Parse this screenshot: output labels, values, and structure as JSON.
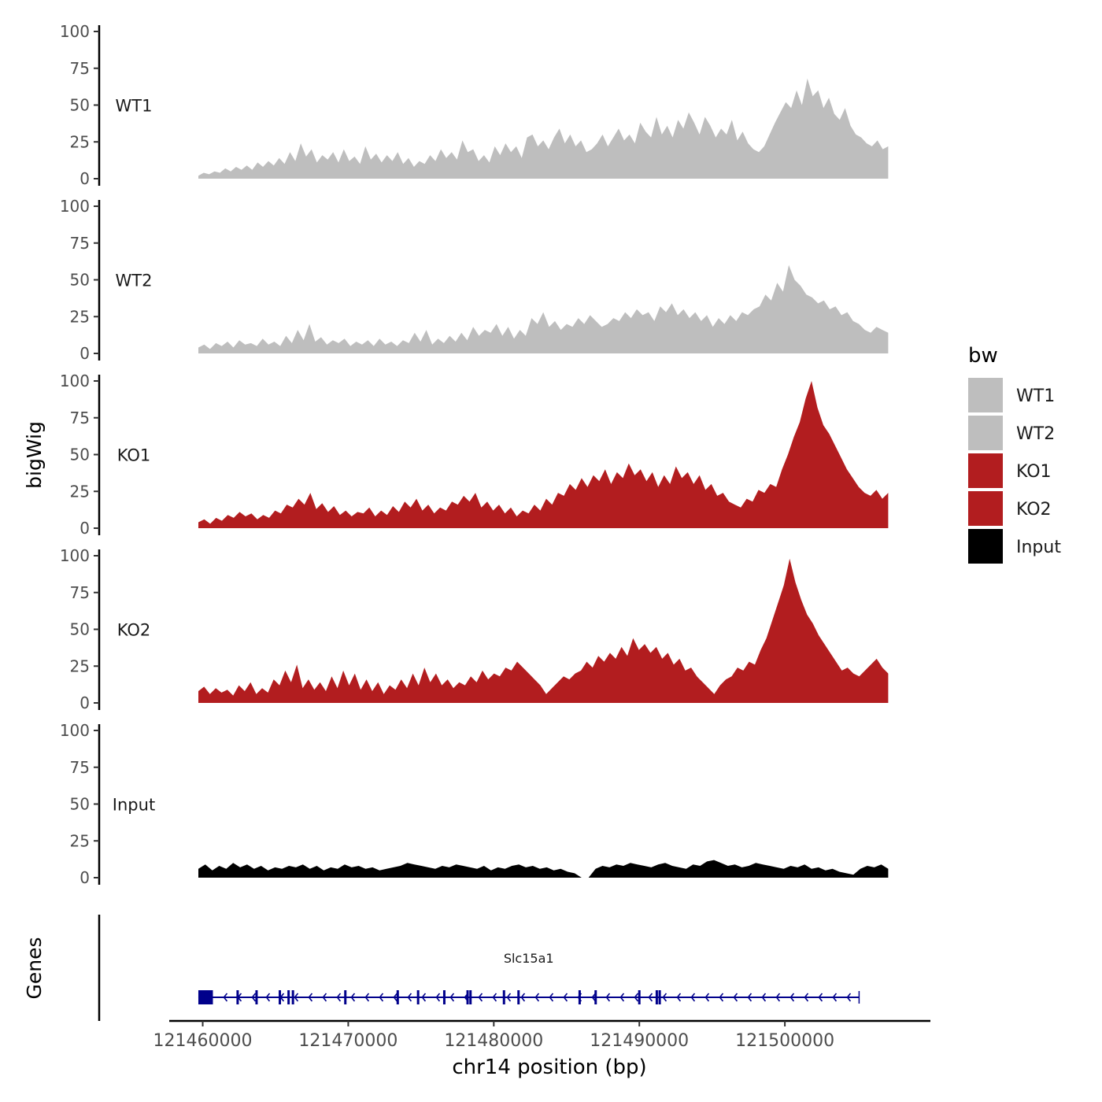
{
  "chart_data": {
    "type": "area",
    "ylabel": "bigWig",
    "xlabel": "chr14 position (bp)",
    "gene_track_label": "Genes",
    "xlim": [
      121457700,
      121510000
    ],
    "x_ticks": [
      121460000,
      121470000,
      121480000,
      121490000,
      121500000
    ],
    "x_tick_labels": [
      "121460000",
      "121470000",
      "121480000",
      "121490000",
      "121500000"
    ],
    "ylim": [
      0,
      100
    ],
    "y_ticks": [
      0,
      25,
      50,
      75,
      100
    ],
    "y_tick_labels": [
      "0",
      "25",
      "50",
      "75",
      "100"
    ],
    "x_range_covered": [
      121459700,
      121507100
    ],
    "legend": {
      "title": "bw",
      "position": "right",
      "entries": [
        {
          "label": "WT1",
          "color": "#bebebe"
        },
        {
          "label": "WT2",
          "color": "#bebebe"
        },
        {
          "label": "KO1",
          "color": "#b21d1f"
        },
        {
          "label": "KO2",
          "color": "#b21d1f"
        },
        {
          "label": "Input",
          "color": "#000000"
        }
      ]
    },
    "series": [
      {
        "name": "WT1",
        "color": "#bebebe",
        "values": [
          2,
          4,
          3,
          5,
          4,
          7,
          5,
          8,
          6,
          9,
          6,
          11,
          8,
          12,
          9,
          14,
          10,
          18,
          12,
          24,
          15,
          20,
          11,
          16,
          13,
          18,
          11,
          20,
          12,
          15,
          10,
          22,
          13,
          17,
          11,
          16,
          12,
          18,
          10,
          14,
          8,
          12,
          10,
          16,
          12,
          20,
          14,
          18,
          13,
          26,
          18,
          20,
          12,
          16,
          11,
          22,
          16,
          24,
          18,
          22,
          14,
          28,
          30,
          22,
          26,
          20,
          28,
          34,
          24,
          30,
          22,
          26,
          18,
          20,
          24,
          30,
          22,
          28,
          34,
          26,
          30,
          24,
          38,
          32,
          28,
          42,
          30,
          36,
          28,
          40,
          34,
          45,
          38,
          30,
          42,
          36,
          28,
          34,
          30,
          40,
          26,
          32,
          24,
          20,
          18,
          22,
          30,
          38,
          45,
          52,
          48,
          60,
          50,
          68,
          56,
          60,
          48,
          55,
          44,
          40,
          48,
          36,
          30,
          28,
          24,
          22,
          26,
          20,
          22
        ]
      },
      {
        "name": "WT2",
        "color": "#bebebe",
        "values": [
          4,
          6,
          3,
          7,
          5,
          8,
          4,
          9,
          6,
          7,
          5,
          10,
          6,
          8,
          5,
          12,
          7,
          16,
          9,
          20,
          8,
          11,
          6,
          9,
          7,
          10,
          5,
          8,
          6,
          9,
          5,
          10,
          6,
          8,
          5,
          9,
          7,
          14,
          8,
          16,
          6,
          10,
          7,
          12,
          8,
          14,
          9,
          18,
          12,
          16,
          14,
          20,
          12,
          18,
          10,
          16,
          12,
          24,
          20,
          28,
          18,
          22,
          16,
          20,
          18,
          24,
          20,
          26,
          22,
          18,
          20,
          24,
          22,
          28,
          24,
          30,
          26,
          28,
          22,
          32,
          28,
          34,
          26,
          30,
          24,
          28,
          22,
          26,
          18,
          24,
          20,
          26,
          22,
          28,
          26,
          30,
          32,
          40,
          36,
          48,
          42,
          60,
          50,
          46,
          40,
          38,
          34,
          36,
          30,
          32,
          26,
          28,
          22,
          20,
          16,
          14,
          18,
          16,
          14
        ]
      },
      {
        "name": "KO1",
        "color": "#b21d1f",
        "values": [
          4,
          6,
          3,
          7,
          5,
          9,
          7,
          11,
          8,
          10,
          6,
          9,
          7,
          12,
          10,
          16,
          14,
          20,
          16,
          24,
          13,
          17,
          11,
          15,
          9,
          12,
          8,
          11,
          10,
          14,
          8,
          12,
          9,
          15,
          11,
          18,
          14,
          20,
          12,
          16,
          10,
          14,
          12,
          18,
          16,
          22,
          18,
          24,
          14,
          18,
          12,
          16,
          10,
          14,
          8,
          12,
          10,
          16,
          12,
          20,
          16,
          24,
          22,
          30,
          26,
          34,
          28,
          36,
          32,
          40,
          30,
          38,
          34,
          44,
          36,
          40,
          32,
          38,
          28,
          36,
          30,
          42,
          34,
          38,
          30,
          36,
          26,
          30,
          22,
          24,
          18,
          16,
          14,
          20,
          18,
          26,
          24,
          30,
          28,
          40,
          50,
          62,
          72,
          88,
          100,
          82,
          70,
          64,
          56,
          48,
          40,
          34,
          28,
          24,
          22,
          26,
          20,
          24
        ]
      },
      {
        "name": "KO2",
        "color": "#b21d1f",
        "values": [
          8,
          11,
          6,
          10,
          7,
          9,
          5,
          12,
          8,
          14,
          6,
          10,
          7,
          16,
          12,
          22,
          14,
          26,
          10,
          16,
          9,
          14,
          8,
          18,
          10,
          22,
          12,
          20,
          9,
          16,
          8,
          14,
          6,
          12,
          9,
          16,
          10,
          20,
          12,
          24,
          14,
          20,
          12,
          16,
          10,
          14,
          12,
          18,
          14,
          22,
          16,
          20,
          18,
          24,
          22,
          28,
          24,
          20,
          16,
          12,
          6,
          10,
          14,
          18,
          16,
          20,
          22,
          28,
          24,
          32,
          28,
          34,
          30,
          38,
          32,
          44,
          36,
          40,
          34,
          38,
          30,
          34,
          26,
          30,
          22,
          24,
          18,
          14,
          10,
          6,
          12,
          16,
          18,
          24,
          22,
          28,
          26,
          36,
          44,
          56,
          68,
          80,
          98,
          82,
          70,
          60,
          54,
          46,
          40,
          34,
          28,
          22,
          24,
          20,
          18,
          22,
          26,
          30,
          24,
          20
        ]
      },
      {
        "name": "Input",
        "color": "#000000",
        "values": [
          6,
          9,
          5,
          8,
          6,
          10,
          7,
          9,
          6,
          8,
          5,
          7,
          6,
          8,
          7,
          9,
          6,
          8,
          5,
          7,
          6,
          9,
          7,
          8,
          6,
          7,
          5,
          6,
          7,
          8,
          10,
          9,
          8,
          7,
          6,
          8,
          7,
          9,
          8,
          7,
          6,
          8,
          5,
          7,
          6,
          8,
          9,
          7,
          8,
          6,
          7,
          5,
          6,
          4,
          3,
          0,
          0,
          6,
          8,
          7,
          9,
          8,
          10,
          9,
          8,
          7,
          9,
          10,
          8,
          7,
          6,
          9,
          8,
          11,
          12,
          10,
          8,
          9,
          7,
          8,
          10,
          9,
          8,
          7,
          6,
          8,
          7,
          9,
          6,
          7,
          5,
          6,
          4,
          3,
          2,
          6,
          8,
          7,
          9,
          6
        ]
      }
    ],
    "genes": [
      {
        "name": "Slc15a1",
        "strand": "-",
        "start": 121459700,
        "end": 121505100,
        "thick_start": 121459700,
        "thick_end": 121460700,
        "exon_positions": [
          121460000,
          121462400,
          121463700,
          121465300,
          121465900,
          121466200,
          121469800,
          121473400,
          121474800,
          121476600,
          121478200,
          121478400,
          121480700,
          121481700,
          121485900,
          121487000,
          121490000,
          121491200,
          121491400
        ]
      }
    ]
  }
}
